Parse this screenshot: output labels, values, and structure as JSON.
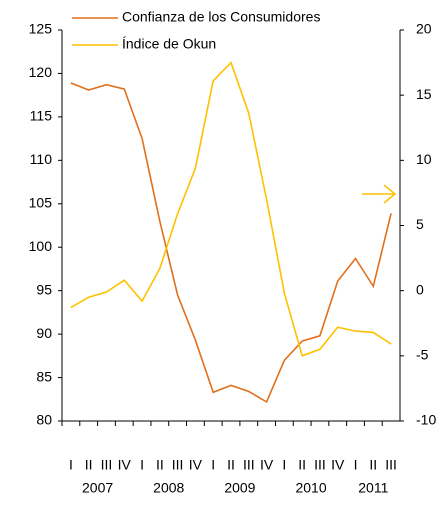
{
  "chart_data": {
    "type": "line",
    "categories": [
      "I",
      "II",
      "III",
      "IV",
      "I",
      "II",
      "III",
      "IV",
      "I",
      "II",
      "III",
      "IV",
      "I",
      "II",
      "III",
      "IV",
      "I",
      "II",
      "III"
    ],
    "groups": [
      "2007",
      "2008",
      "2009",
      "2010",
      "2011"
    ],
    "series": [
      {
        "name": "Confianza de los Consumidores",
        "color": "#e0701e",
        "axis": "y",
        "values": [
          118.9,
          118.1,
          118.7,
          118.2,
          112.5,
          103,
          94.5,
          89.3,
          83.3,
          84.1,
          83.4,
          82.2,
          87.0,
          89.2,
          89.8,
          96.1,
          98.7,
          95.5,
          103.9
        ]
      },
      {
        "name": "Índice de Okun",
        "color": "#ffc000",
        "axis": "y2",
        "values": [
          -1.3,
          -0.5,
          -0.1,
          0.8,
          -0.8,
          1.7,
          5.9,
          9.4,
          16.1,
          17.5,
          13.6,
          7.0,
          -0.2,
          -5.0,
          -4.5,
          -2.8,
          -3.1,
          -3.2,
          -4.1
        ]
      }
    ],
    "ylim": [
      80,
      125
    ],
    "yticks": [
      80,
      85,
      90,
      95,
      100,
      105,
      110,
      115,
      120,
      125
    ],
    "y2lim": [
      -10,
      20
    ],
    "y2ticks": [
      -10,
      -5,
      0,
      5,
      10,
      15,
      20
    ]
  }
}
